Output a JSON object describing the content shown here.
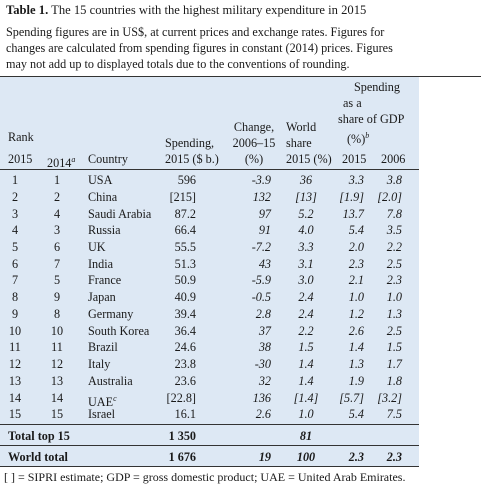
{
  "table": {
    "label": "Table 1.",
    "title": " The 15 countries with the highest military expenditure in 2015",
    "description_lines": [
      "Spending figures are in US$, at current prices and exchange rates. Figures for",
      "changes are calculated from spending figures in constant (2014) prices. Figures",
      "may not add up to displayed totals due to the conventions of rounding."
    ],
    "header": {
      "rank": "Rank",
      "spending": [
        "Spending,",
        "2015 ($ b.)"
      ],
      "change": [
        "Change,",
        "2006–15",
        "(%)"
      ],
      "world_share": [
        "World",
        "share",
        "2015 (%)"
      ],
      "gdp_share": [
        "Spending",
        "as a",
        "share of GDP",
        "(%)"
      ],
      "gdp_sup": "b",
      "col_rank2015": "2015",
      "col_rank2014": "2014",
      "col_rank2014_sup": "a",
      "col_country": "Country",
      "col_gdp2015": "2015",
      "col_gdp2006": "2006"
    },
    "rows": [
      {
        "r15": "1",
        "r14": "1",
        "country": "USA",
        "sup": "",
        "spending": "596",
        "change": "-3.9",
        "share": "36",
        "gdp15": "3.3",
        "gdp06": "3.8"
      },
      {
        "r15": "2",
        "r14": "2",
        "country": "China",
        "sup": "",
        "spending": "[215]",
        "change": "132",
        "share": "[13]",
        "gdp15": "[1.9]",
        "gdp06": "[2.0]"
      },
      {
        "r15": "3",
        "r14": "4",
        "country": "Saudi Arabia",
        "sup": "",
        "spending": "87.2",
        "change": "97",
        "share": "5.2",
        "gdp15": "13.7",
        "gdp06": "7.8"
      },
      {
        "r15": "4",
        "r14": "3",
        "country": "Russia",
        "sup": "",
        "spending": "66.4",
        "change": "91",
        "share": "4.0",
        "gdp15": "5.4",
        "gdp06": "3.5"
      },
      {
        "r15": "5",
        "r14": "6",
        "country": "UK",
        "sup": "",
        "spending": "55.5",
        "change": "-7.2",
        "share": "3.3",
        "gdp15": "2.0",
        "gdp06": "2.2"
      },
      {
        "r15": "6",
        "r14": "7",
        "country": "India",
        "sup": "",
        "spending": "51.3",
        "change": "43",
        "share": "3.1",
        "gdp15": "2.3",
        "gdp06": "2.5"
      },
      {
        "r15": "7",
        "r14": "5",
        "country": "France",
        "sup": "",
        "spending": "50.9",
        "change": "-5.9",
        "share": "3.0",
        "gdp15": "2.1",
        "gdp06": "2.3"
      },
      {
        "r15": "8",
        "r14": "9",
        "country": "Japan",
        "sup": "",
        "spending": "40.9",
        "change": "-0.5",
        "share": "2.4",
        "gdp15": "1.0",
        "gdp06": "1.0"
      },
      {
        "r15": "9",
        "r14": "8",
        "country": "Germany",
        "sup": "",
        "spending": "39.4",
        "change": "2.8",
        "share": "2.4",
        "gdp15": "1.2",
        "gdp06": "1.3"
      },
      {
        "r15": "10",
        "r14": "10",
        "country": "South Korea",
        "sup": "",
        "spending": "36.4",
        "change": "37",
        "share": "2.2",
        "gdp15": "2.6",
        "gdp06": "2.5"
      },
      {
        "r15": "11",
        "r14": "11",
        "country": "Brazil",
        "sup": "",
        "spending": "24.6",
        "change": "38",
        "share": "1.5",
        "gdp15": "1.4",
        "gdp06": "1.5"
      },
      {
        "r15": "12",
        "r14": "12",
        "country": "Italy",
        "sup": "",
        "spending": "23.8",
        "change": "-30",
        "share": "1.4",
        "gdp15": "1.3",
        "gdp06": "1.7"
      },
      {
        "r15": "13",
        "r14": "13",
        "country": "Australia",
        "sup": "",
        "spending": "23.6",
        "change": "32",
        "share": "1.4",
        "gdp15": "1.9",
        "gdp06": "1.8"
      },
      {
        "r15": "14",
        "r14": "14",
        "country": "UAE",
        "sup": "c",
        "spending": "[22.8]",
        "change": "136",
        "share": "[1.4]",
        "gdp15": "[5.7]",
        "gdp06": "[3.2]"
      },
      {
        "r15": "15",
        "r14": "15",
        "country": "Israel",
        "sup": "",
        "spending": "16.1",
        "change": "2.6",
        "share": "1.0",
        "gdp15": "5.4",
        "gdp06": "7.5"
      }
    ],
    "total_top15": {
      "label": "Total top 15",
      "spending": "1 350",
      "share": "81"
    },
    "world_total": {
      "label": "World total",
      "spending": "1 676",
      "change": "19",
      "share": "100",
      "gdp15": "2.3",
      "gdp06": "2.3"
    },
    "footnote": "[ ] = SIPRI estimate; GDP = gross domestic product; UAE = United Arab Emirates."
  }
}
